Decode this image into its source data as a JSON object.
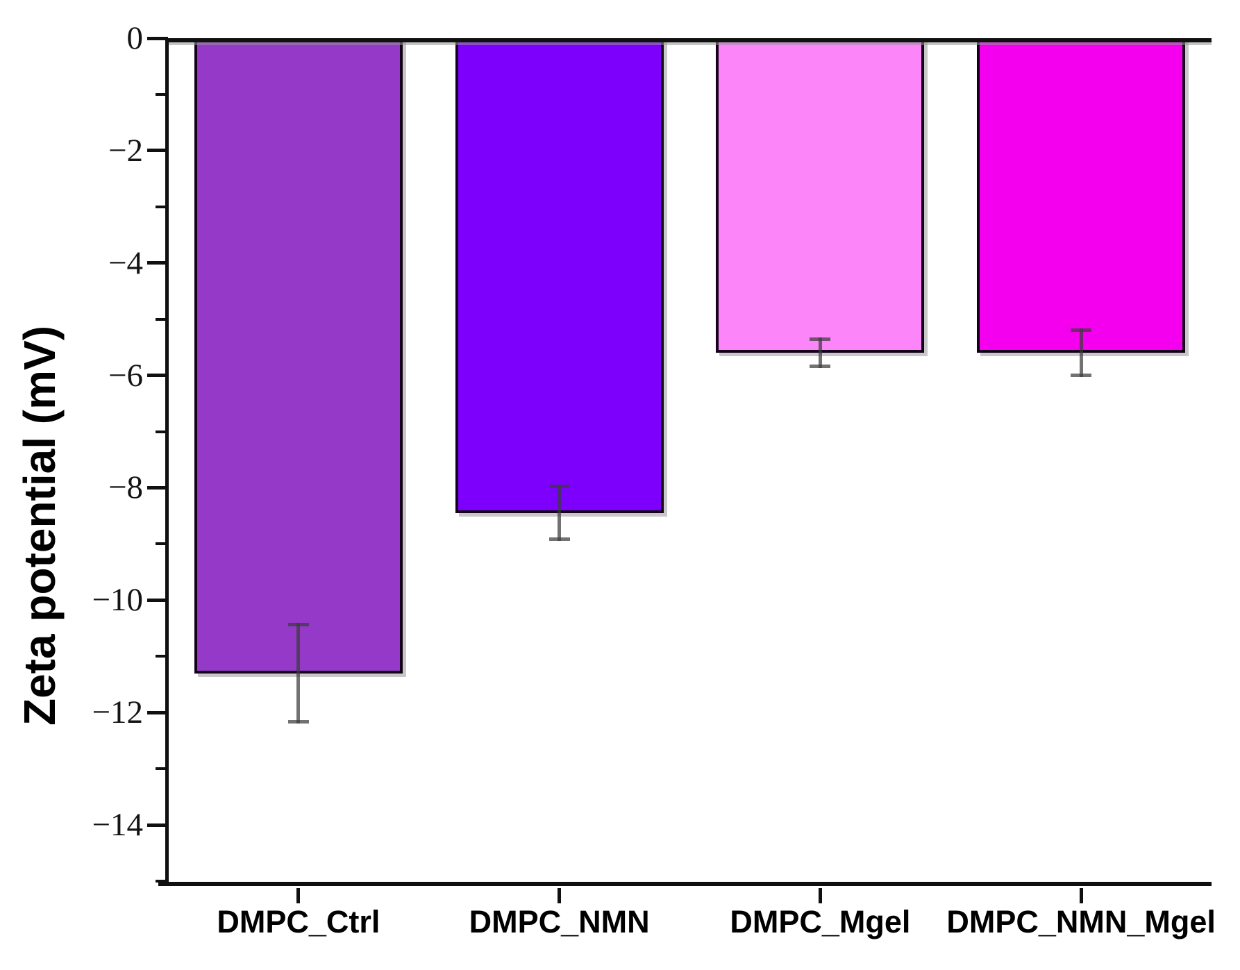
{
  "figure": {
    "background": "#ffffff"
  },
  "chart_data": {
    "type": "bar",
    "title": "",
    "xlabel": "",
    "ylabel": "Zeta potential (mV)",
    "categories": [
      "DMPC_Ctrl",
      "DMPC_NMN",
      "DMPC_Mgel",
      "DMPC_NMN_Mgel"
    ],
    "values": [
      -11.3,
      -8.45,
      -5.6,
      -5.6
    ],
    "errors": [
      0.9,
      0.5,
      0.27,
      0.43
    ],
    "bar_colors": [
      "#9439c8",
      "#7c00fb",
      "#fc85fa",
      "#f500ef"
    ],
    "bar_edge_color": "#15001a",
    "error_bar_color": "rgba(60,60,60,0.72)",
    "axis_color": "#101010",
    "ylim": [
      -15.05,
      0
    ],
    "yticks": [
      {
        "value": 0,
        "label": "0"
      },
      {
        "value": -2,
        "label": "−2"
      },
      {
        "value": -4,
        "label": "−4"
      },
      {
        "value": -6,
        "label": "−6"
      },
      {
        "value": -8,
        "label": "−8"
      },
      {
        "value": -10,
        "label": "−10"
      },
      {
        "value": -12,
        "label": "−12"
      },
      {
        "value": -14,
        "label": "−14"
      }
    ],
    "yticks_minor": [
      -1,
      -3,
      -5,
      -7,
      -9,
      -11,
      -13,
      -15
    ],
    "grid": false,
    "legend": null
  }
}
